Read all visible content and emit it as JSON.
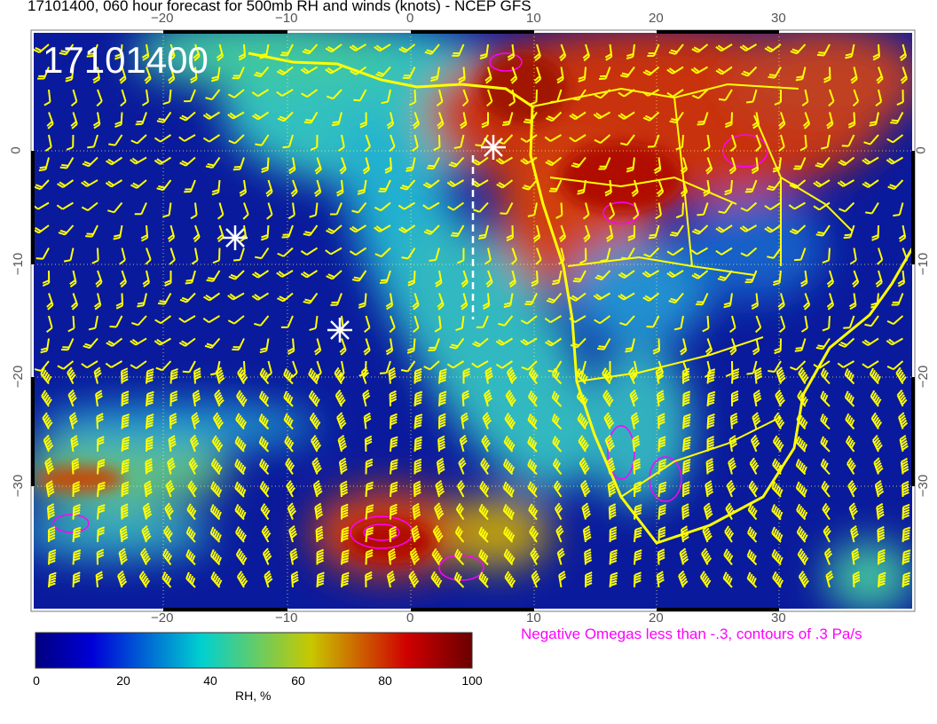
{
  "title": "17101400, 060 hour forecast for 500mb RH and winds (knots) - NCEP GFS",
  "stamp": "17101400",
  "axes": {
    "lon_ticks": [
      "−20",
      "−10",
      "0",
      "10",
      "20",
      "30"
    ],
    "lat_ticks": [
      "0",
      "−10",
      "−20",
      "−30"
    ]
  },
  "colorbar": {
    "title": "RH, %",
    "ticks": [
      "0",
      "20",
      "40",
      "60",
      "80",
      "100"
    ],
    "colors": [
      "#00007f",
      "#0000d8",
      "#00d0d0",
      "#c8c800",
      "#d00000",
      "#6a0000"
    ]
  },
  "legend": "Negative Omegas less than -.3, contours of .3 Pa/s",
  "colors": {
    "barbs": "#ffff00",
    "coast": "#ffff00",
    "omega": "#ff00ff",
    "ocean_dry": "#0a1a9c"
  }
}
